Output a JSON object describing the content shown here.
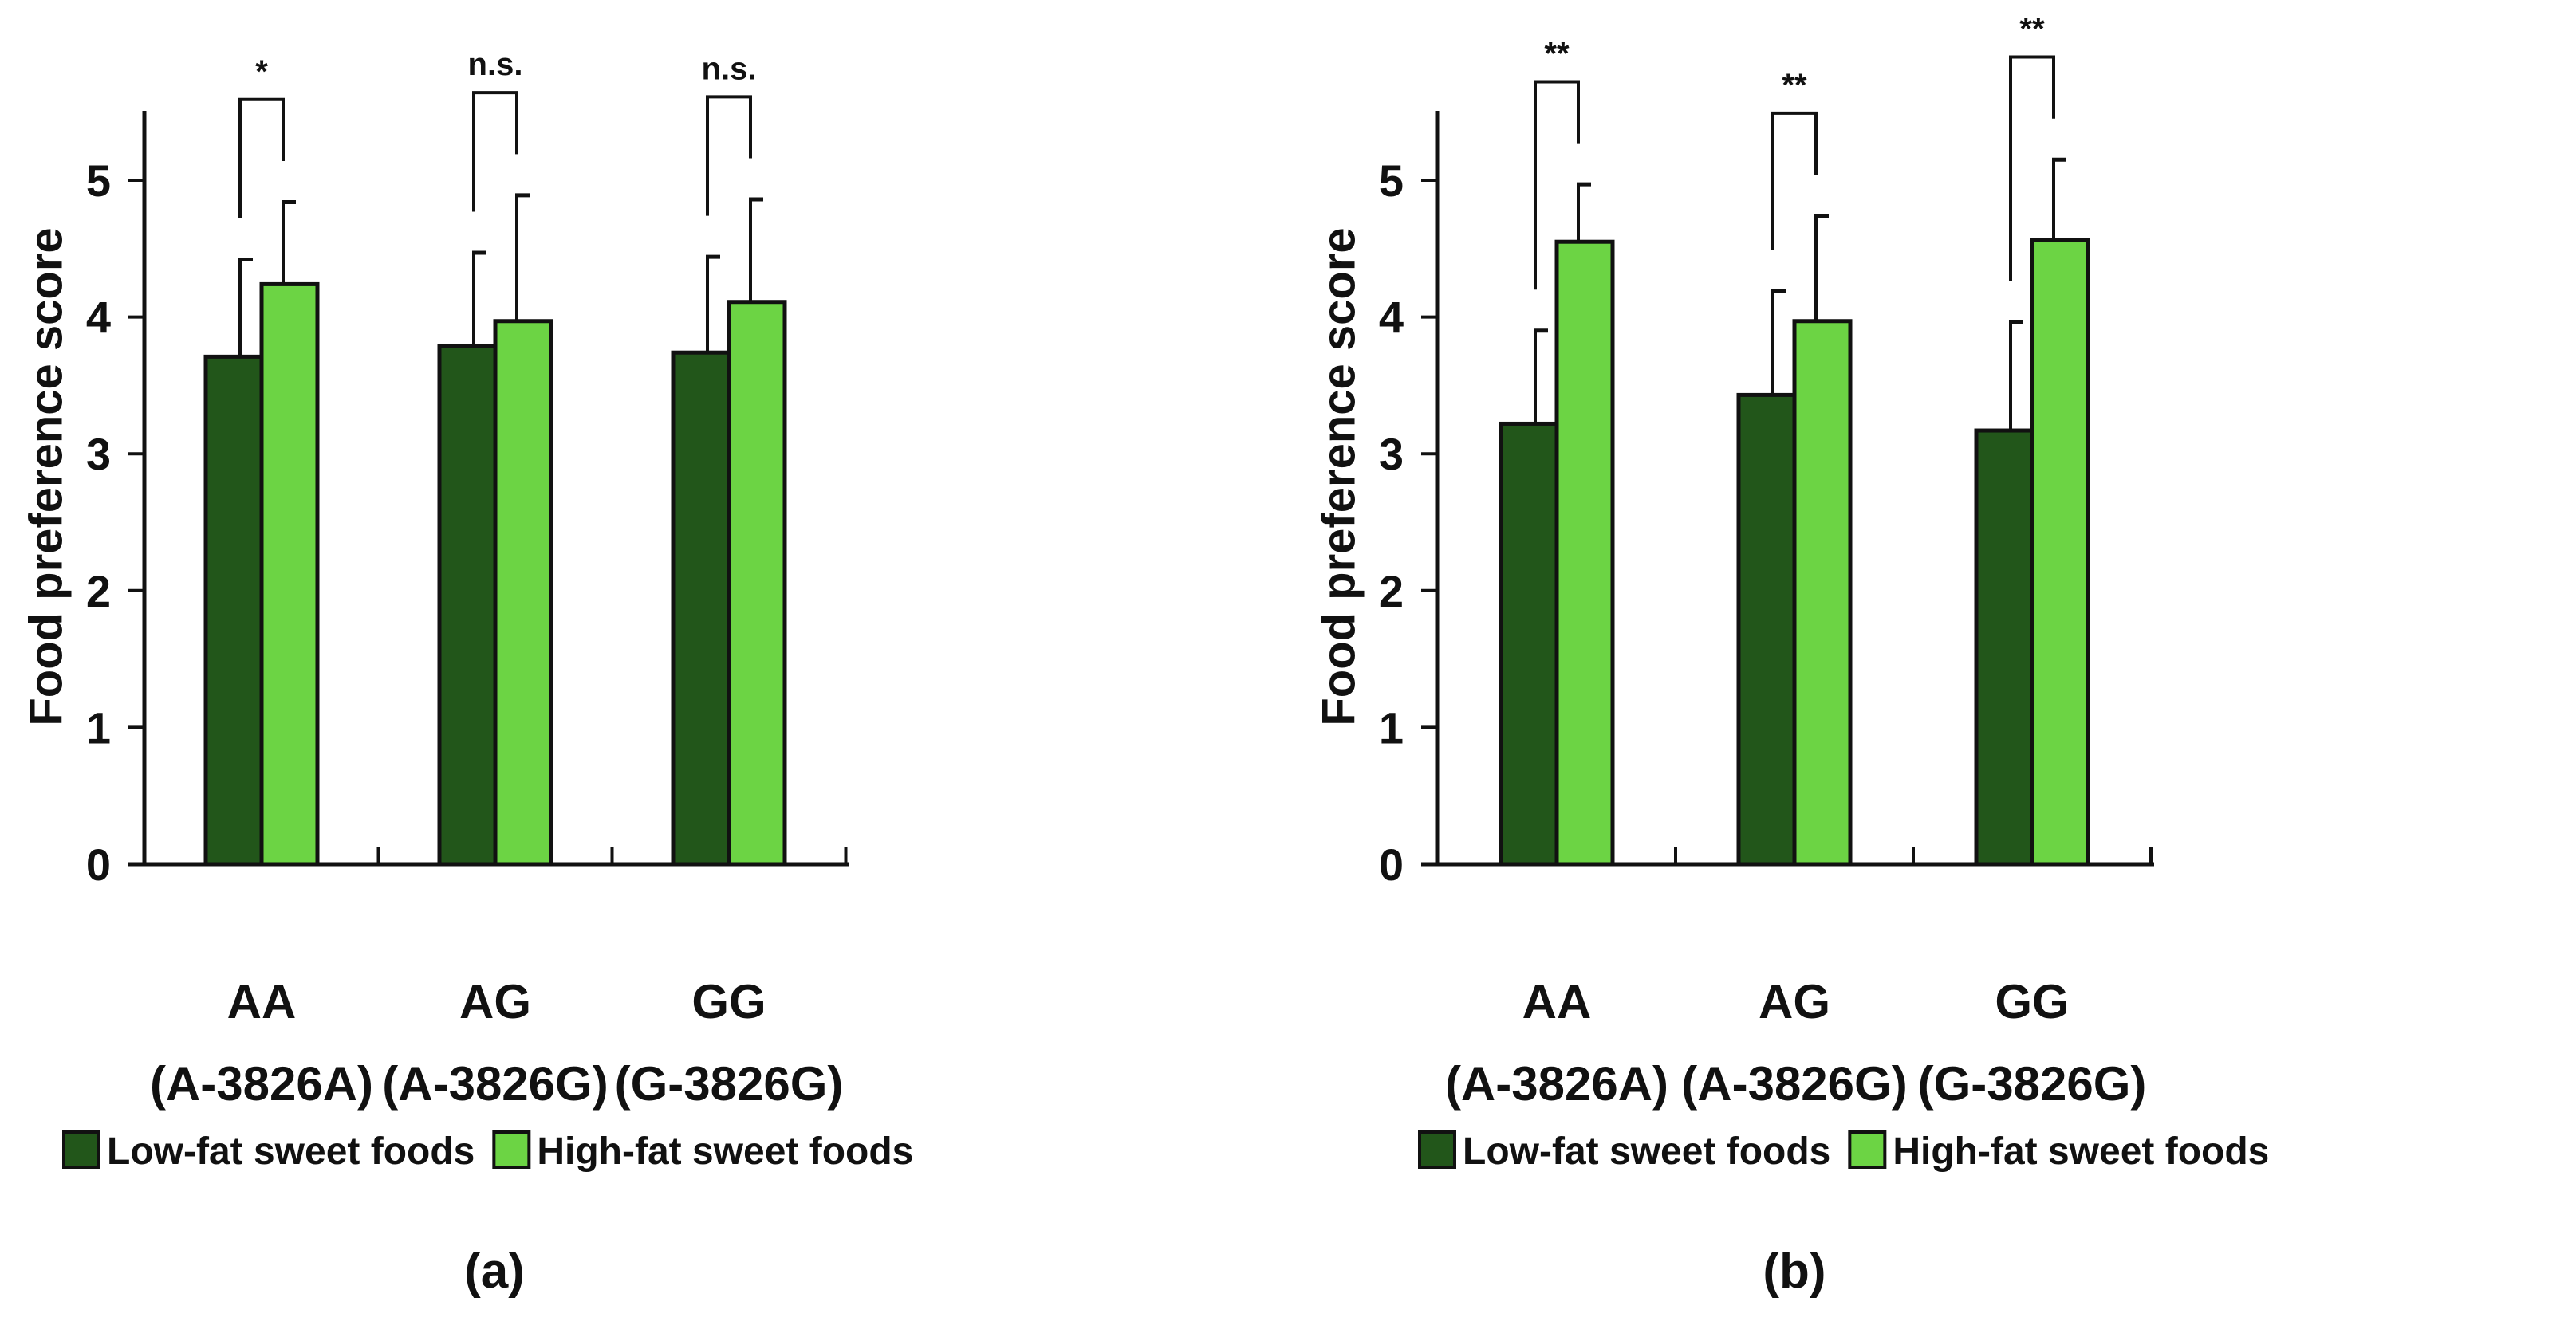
{
  "colors": {
    "low": "#22561a",
    "high": "#6cd444",
    "axis": "#111111"
  },
  "chart_data": [
    {
      "type": "bar",
      "panel_label": "(a)",
      "ylabel": "Food preference score",
      "ylim": [
        0,
        5.5
      ],
      "yticks": [
        "0",
        "1",
        "2",
        "3",
        "4",
        "5"
      ],
      "categories": [
        [
          "AA",
          "(A-3826A)"
        ],
        [
          "AG",
          "(A-3826G)"
        ],
        [
          "GG",
          "(G-3826G)"
        ]
      ],
      "series": [
        {
          "name": "Low-fat sweet foods",
          "values": [
            3.71,
            3.79,
            3.74
          ],
          "errors": [
            0.71,
            0.68,
            0.7
          ]
        },
        {
          "name": "High-fat sweet foods",
          "values": [
            4.24,
            3.97,
            4.11
          ],
          "errors": [
            0.6,
            0.92,
            0.75
          ]
        }
      ],
      "significance": [
        "*",
        "n.s.",
        "n.s."
      ],
      "legend": "bottom"
    },
    {
      "type": "bar",
      "panel_label": "(b)",
      "ylabel": "Food preference score",
      "ylim": [
        0,
        5.5
      ],
      "yticks": [
        "0",
        "1",
        "2",
        "3",
        "4",
        "5"
      ],
      "categories": [
        [
          "AA",
          "(A-3826A)"
        ],
        [
          "AG",
          "(A-3826G)"
        ],
        [
          "GG",
          "(G-3826G)"
        ]
      ],
      "series": [
        {
          "name": "Low-fat sweet foods",
          "values": [
            3.22,
            3.43,
            3.17
          ],
          "errors": [
            0.68,
            0.76,
            0.79
          ]
        },
        {
          "name": "High-fat sweet foods",
          "values": [
            4.55,
            3.97,
            4.56
          ],
          "errors": [
            0.42,
            0.77,
            0.59
          ]
        }
      ],
      "significance": [
        "**",
        "**",
        "**"
      ],
      "legend": "bottom"
    }
  ]
}
